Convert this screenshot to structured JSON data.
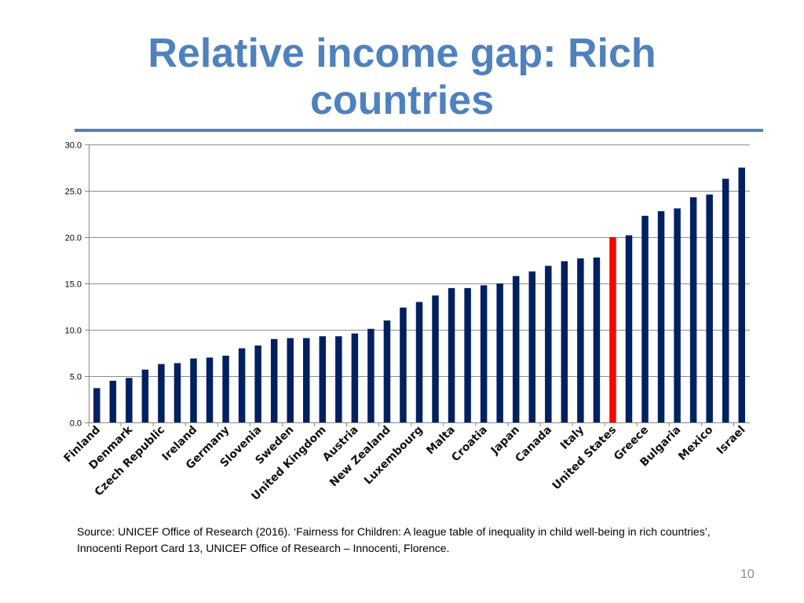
{
  "slide": {
    "title": "Relative income gap: Rich countries",
    "source": "Source: UNICEF Office of Research (2016). ‘Fairness for Children: A league table of inequality in child well-being in rich countries’, Innocenti Report Card 13, UNICEF Office of Research – Innocenti, Florence.",
    "page_number": "10",
    "title_color": "#4F81BD",
    "rule_color": "#4F81BD"
  },
  "chart_data": {
    "type": "bar",
    "categories": [
      "Finland",
      "",
      "Denmark",
      "",
      "Czech Republic",
      "",
      "Ireland",
      "",
      "Germany",
      "",
      "Slovenia",
      "",
      "Sweden",
      "",
      "United Kingdom",
      "",
      "Austria",
      "",
      "New Zealand",
      "",
      "Luxembourg",
      "",
      "Malta",
      "",
      "Croatia",
      "",
      "Japan",
      "",
      "Canada",
      "",
      "Italy",
      "",
      "United States",
      "",
      "Greece",
      "",
      "Bulgaria",
      "",
      "Mexico",
      "",
      "Israel"
    ],
    "values": [
      3.7,
      4.5,
      4.8,
      5.7,
      6.3,
      6.4,
      6.9,
      7.0,
      7.2,
      8.0,
      8.3,
      9.0,
      9.1,
      9.1,
      9.3,
      9.3,
      9.6,
      10.1,
      11.0,
      12.4,
      13.0,
      13.7,
      14.5,
      14.5,
      14.8,
      15.0,
      15.8,
      16.3,
      16.9,
      17.4,
      17.7,
      17.8,
      20.0,
      20.2,
      22.3,
      22.8,
      23.1,
      24.3,
      24.6,
      26.3,
      27.5
    ],
    "ylim": [
      0,
      30
    ],
    "yticks": [
      0,
      5,
      10,
      15,
      20,
      25,
      30
    ],
    "ytick_labels": [
      "0.0",
      "5.0",
      "10.0",
      "15.0",
      "20.0",
      "25.0",
      "30.0"
    ],
    "grid": true,
    "bar_color": "#002060",
    "highlight": {
      "index": 32,
      "color": "#FF0000"
    },
    "grid_color": "#8c8c8c",
    "axis_color": "#868686",
    "label_color": "#111111"
  }
}
